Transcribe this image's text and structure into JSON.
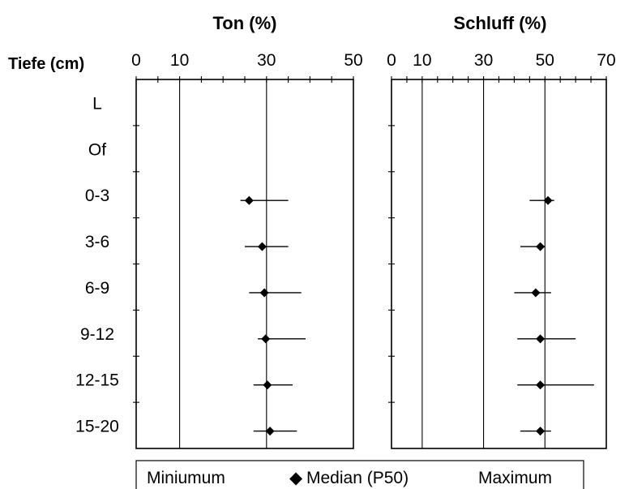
{
  "chart_data": {
    "type": "scatter",
    "y_axis_title": "Tiefe (cm)",
    "categories": [
      "L",
      "Of",
      "0-3",
      "3-6",
      "6-9",
      "9-12",
      "12-15",
      "15-20"
    ],
    "grid": "vertical lines at selected ticks",
    "panels": [
      {
        "title": "Ton (%)",
        "xlim": [
          0,
          50
        ],
        "x_tick_labels": [
          0,
          10,
          30,
          50
        ],
        "minor_ticks": [
          0,
          5,
          10,
          15,
          20,
          25,
          30,
          35,
          40,
          45,
          50
        ],
        "gridlines": [
          10,
          30
        ],
        "series": [
          {
            "name": "Miniumum",
            "values": [
              null,
              null,
              24,
              25,
              26,
              28,
              27,
              27
            ]
          },
          {
            "name": "Median (P50)",
            "values": [
              null,
              null,
              26,
              29,
              29.5,
              29.8,
              30.2,
              30.8
            ]
          },
          {
            "name": "Maximum",
            "values": [
              null,
              null,
              35,
              35,
              38,
              39,
              36,
              37
            ]
          }
        ]
      },
      {
        "title": "Schluff (%)",
        "xlim": [
          0,
          70
        ],
        "x_tick_labels": [
          0,
          10,
          30,
          50,
          70
        ],
        "minor_ticks": [
          0,
          5,
          10,
          15,
          20,
          25,
          30,
          35,
          40,
          45,
          50,
          55,
          60,
          65,
          70
        ],
        "gridlines": [
          10,
          30,
          50
        ],
        "series": [
          {
            "name": "Miniumum",
            "values": [
              null,
              null,
              45,
              42,
              40,
              41,
              41,
              42
            ]
          },
          {
            "name": "Median (P50)",
            "values": [
              null,
              null,
              51,
              48.5,
              47,
              48.5,
              48.5,
              48.5
            ]
          },
          {
            "name": "Maximum",
            "values": [
              null,
              null,
              53,
              50,
              52,
              60,
              66,
              52
            ]
          }
        ]
      }
    ],
    "legend": {
      "placement": "bottom",
      "items": [
        "Miniumum",
        "Median (P50)",
        "Maximum"
      ],
      "marker": "◆"
    }
  }
}
